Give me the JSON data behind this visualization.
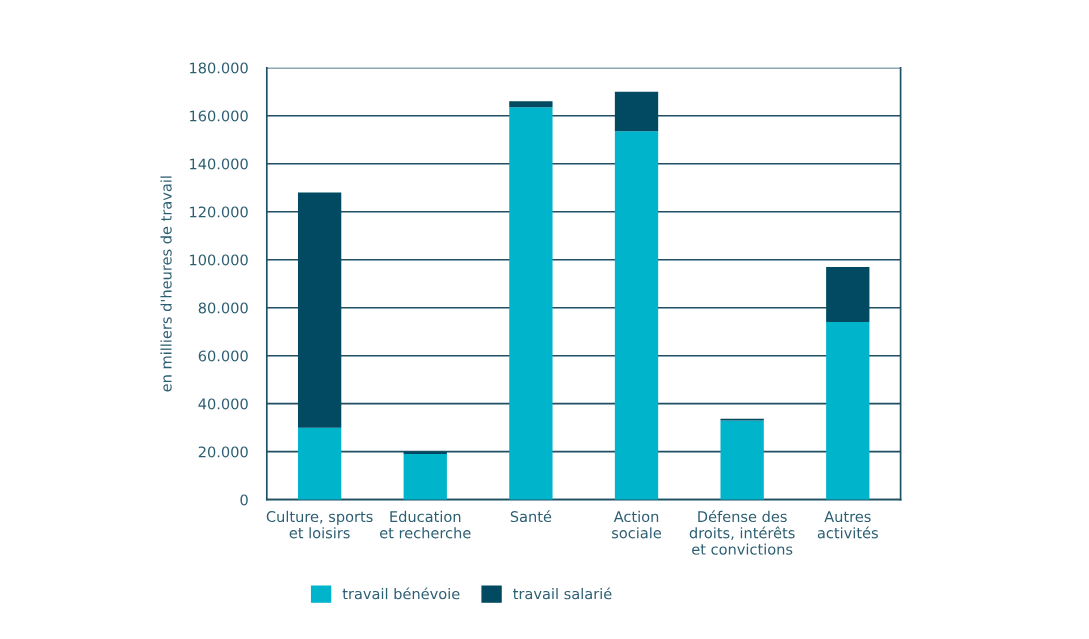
{
  "chart_data": {
    "type": "bar",
    "stacked": true,
    "ylabel": "en milliers d'heures de travail",
    "categories": [
      "Culture, sports\net loisirs",
      "Education\net recherche",
      "Santé",
      "Action\nsociale",
      "Défense des\ndroits, intérêts\net convictions",
      "Autres\nactivités"
    ],
    "series": [
      {
        "name": "travail bénévoie",
        "color": "#00b4cc",
        "values": [
          30000,
          19000,
          163500,
          153500,
          33000,
          74000
        ]
      },
      {
        "name": "travail salarié",
        "color": "#014a62",
        "values": [
          98000,
          1000,
          2500,
          16500,
          700,
          23000
        ]
      }
    ],
    "ylim": [
      0,
      180000
    ],
    "yticks": [
      {
        "value": 0,
        "label": "0"
      },
      {
        "value": 20000,
        "label": "20.000"
      },
      {
        "value": 40000,
        "label": "40.000"
      },
      {
        "value": 60000,
        "label": "60.000"
      },
      {
        "value": 80000,
        "label": "80.000"
      },
      {
        "value": 100000,
        "label": "100.000"
      },
      {
        "value": 120000,
        "label": "120.000"
      },
      {
        "value": 140000,
        "label": "140.000"
      },
      {
        "value": 160000,
        "label": "160.000"
      },
      {
        "value": 180000,
        "label": "180.000"
      }
    ],
    "grid": "y",
    "legend": "bottom left"
  }
}
